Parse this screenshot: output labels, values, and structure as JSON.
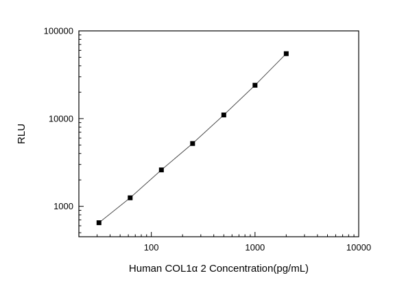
{
  "chart_data": {
    "type": "scatter",
    "subtype": "line-with-square-markers",
    "title": "",
    "xlabel": "Human  COL1α 2  Concentration(pg/mL)",
    "ylabel": "RLU",
    "xscale": "log",
    "yscale": "log",
    "xlim": [
      20,
      10000
    ],
    "ylim": [
      450,
      100000
    ],
    "x_major_ticks": [
      100,
      1000,
      10000
    ],
    "y_major_ticks": [
      1000,
      10000,
      100000
    ],
    "x": [
      31.25,
      62.5,
      125,
      250,
      500,
      1000,
      2000
    ],
    "y": [
      650,
      1250,
      2600,
      5200,
      11000,
      24000,
      55000
    ],
    "grid": false,
    "legend": null,
    "marker": "filled-square",
    "marker_color": "#000000",
    "line_color": "#4a4a4a",
    "frame_color": "#000000",
    "background_color": "#ffffff"
  }
}
